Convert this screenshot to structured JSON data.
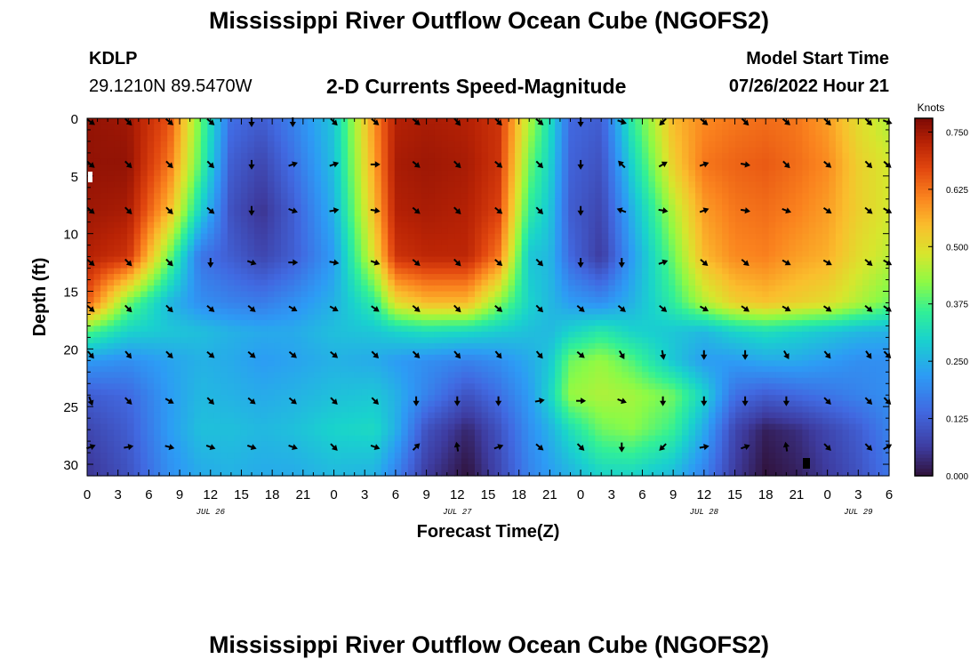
{
  "page": {
    "title": "Mississippi River Outflow Ocean Cube (NGOFS2)",
    "station_id": "KDLP",
    "coordinates": "29.1210N  89.5470W",
    "subtitle": "2-D Currents Speed-Magnitude",
    "model_start_label": "Model Start Time",
    "model_start_value": "07/26/2022 Hour 21",
    "bottom_title": "Mississippi River Outflow Ocean Cube (NGOFS2)"
  },
  "chart_data": {
    "type": "heatmap",
    "title": "2-D Currents Speed-Magnitude",
    "xlabel": "Forecast Time(Z)",
    "ylabel": "Depth (ft)",
    "colorbar_label": "Knots",
    "colorbar_ticks": [
      "0.750",
      "0.625",
      "0.500",
      "0.375",
      "0.250",
      "0.125",
      "0.000"
    ],
    "colorbar_range": [
      0.0,
      0.78
    ],
    "x_range_hours": [
      0,
      78
    ],
    "y_range_ft": [
      0,
      31
    ],
    "x_tick_labels": [
      "0",
      "3",
      "6",
      "9",
      "12",
      "15",
      "18",
      "21",
      "0",
      "3",
      "6",
      "9",
      "12",
      "15",
      "18",
      "21",
      "0",
      "3",
      "6",
      "9",
      "12",
      "15",
      "18",
      "21",
      "0",
      "3",
      "6"
    ],
    "date_labels": [
      {
        "text": "JUL 26",
        "hour": 12
      },
      {
        "text": "JUL 27",
        "hour": 36
      },
      {
        "text": "JUL 28",
        "hour": 60
      },
      {
        "text": "JUL 29",
        "hour": 75
      }
    ],
    "y_ticks": [
      0,
      5,
      10,
      15,
      20,
      25,
      30
    ],
    "speed_grid": {
      "hours": [
        0,
        4,
        8,
        11,
        14,
        17,
        20,
        24,
        28,
        30,
        33,
        37,
        40,
        43,
        45,
        47,
        50,
        53,
        57,
        60,
        63,
        66,
        69,
        72,
        75,
        78
      ],
      "depths": [
        0,
        4,
        8,
        12,
        16,
        18.5,
        21,
        24,
        27,
        31
      ],
      "values": [
        [
          0.76,
          0.75,
          0.66,
          0.4,
          0.15,
          0.12,
          0.18,
          0.28,
          0.6,
          0.73,
          0.74,
          0.73,
          0.7,
          0.45,
          0.32,
          0.14,
          0.12,
          0.35,
          0.55,
          0.6,
          0.62,
          0.63,
          0.62,
          0.58,
          0.5,
          0.45
        ],
        [
          0.76,
          0.76,
          0.62,
          0.38,
          0.12,
          0.08,
          0.15,
          0.27,
          0.58,
          0.74,
          0.75,
          0.74,
          0.7,
          0.4,
          0.3,
          0.13,
          0.1,
          0.3,
          0.52,
          0.62,
          0.64,
          0.65,
          0.63,
          0.6,
          0.52,
          0.48
        ],
        [
          0.75,
          0.74,
          0.55,
          0.3,
          0.1,
          0.05,
          0.12,
          0.25,
          0.55,
          0.73,
          0.74,
          0.73,
          0.68,
          0.35,
          0.28,
          0.12,
          0.08,
          0.25,
          0.45,
          0.58,
          0.62,
          0.63,
          0.61,
          0.58,
          0.52,
          0.48
        ],
        [
          0.73,
          0.7,
          0.4,
          0.16,
          0.12,
          0.08,
          0.12,
          0.22,
          0.5,
          0.7,
          0.72,
          0.72,
          0.62,
          0.28,
          0.26,
          0.14,
          0.06,
          0.22,
          0.4,
          0.55,
          0.6,
          0.61,
          0.58,
          0.56,
          0.5,
          0.46
        ],
        [
          0.65,
          0.4,
          0.26,
          0.2,
          0.18,
          0.17,
          0.2,
          0.25,
          0.35,
          0.5,
          0.55,
          0.55,
          0.42,
          0.3,
          0.26,
          0.22,
          0.2,
          0.25,
          0.35,
          0.45,
          0.52,
          0.54,
          0.52,
          0.5,
          0.45,
          0.4
        ],
        [
          0.38,
          0.3,
          0.28,
          0.27,
          0.25,
          0.24,
          0.24,
          0.27,
          0.28,
          0.3,
          0.32,
          0.31,
          0.29,
          0.27,
          0.26,
          0.3,
          0.34,
          0.3,
          0.28,
          0.26,
          0.3,
          0.32,
          0.3,
          0.28,
          0.26,
          0.25
        ],
        [
          0.22,
          0.2,
          0.23,
          0.25,
          0.24,
          0.22,
          0.23,
          0.25,
          0.24,
          0.22,
          0.2,
          0.18,
          0.2,
          0.24,
          0.28,
          0.4,
          0.43,
          0.38,
          0.28,
          0.22,
          0.22,
          0.24,
          0.24,
          0.22,
          0.2,
          0.2
        ],
        [
          0.12,
          0.14,
          0.22,
          0.26,
          0.25,
          0.24,
          0.25,
          0.27,
          0.28,
          0.25,
          0.18,
          0.1,
          0.15,
          0.22,
          0.3,
          0.43,
          0.45,
          0.44,
          0.4,
          0.3,
          0.15,
          0.12,
          0.14,
          0.16,
          0.18,
          0.2
        ],
        [
          0.08,
          0.12,
          0.22,
          0.27,
          0.27,
          0.26,
          0.27,
          0.3,
          0.31,
          0.25,
          0.1,
          0.03,
          0.1,
          0.2,
          0.25,
          0.32,
          0.4,
          0.42,
          0.36,
          0.24,
          0.08,
          0.02,
          0.04,
          0.08,
          0.12,
          0.18
        ],
        [
          0.05,
          0.1,
          0.2,
          0.24,
          0.25,
          0.24,
          0.24,
          0.26,
          0.25,
          0.18,
          0.06,
          0.0,
          0.08,
          0.18,
          0.22,
          0.25,
          0.3,
          0.3,
          0.26,
          0.18,
          0.06,
          0.0,
          0.02,
          0.06,
          0.1,
          0.16
        ]
      ]
    },
    "vector_depths": [
      0,
      4,
      8,
      12.5,
      16.5,
      20.5,
      24.5,
      28.5
    ],
    "vector_hours": [
      0,
      4,
      8,
      12,
      16,
      20,
      24,
      28,
      32,
      36,
      40,
      44,
      48,
      52,
      56,
      60,
      64,
      68,
      72,
      76,
      78
    ],
    "vector_angles_deg": [
      [
        35,
        45,
        40,
        40,
        90,
        90,
        45,
        40,
        40,
        50,
        45,
        40,
        90,
        20,
        135,
        40,
        45,
        40,
        45,
        45,
        20
      ],
      [
        40,
        45,
        45,
        45,
        90,
        -20,
        -20,
        0,
        40,
        45,
        40,
        45,
        90,
        -135,
        -30,
        -20,
        10,
        45,
        40,
        45,
        40
      ],
      [
        40,
        45,
        45,
        40,
        90,
        20,
        -10,
        10,
        40,
        45,
        40,
        45,
        90,
        -160,
        10,
        -20,
        10,
        20,
        35,
        40,
        30
      ],
      [
        40,
        45,
        45,
        90,
        20,
        0,
        10,
        20,
        40,
        45,
        40,
        45,
        90,
        90,
        -20,
        40,
        40,
        30,
        30,
        40,
        30
      ],
      [
        40,
        45,
        45,
        40,
        40,
        30,
        30,
        35,
        40,
        45,
        40,
        45,
        40,
        40,
        40,
        30,
        35,
        30,
        35,
        40,
        35
      ],
      [
        50,
        50,
        45,
        40,
        40,
        40,
        40,
        45,
        45,
        50,
        50,
        50,
        40,
        60,
        80,
        90,
        90,
        60,
        50,
        55,
        45
      ],
      [
        70,
        45,
        30,
        45,
        40,
        40,
        45,
        45,
        90,
        90,
        90,
        -10,
        0,
        20,
        90,
        90,
        90,
        90,
        45,
        45,
        45
      ],
      [
        -20,
        -10,
        15,
        20,
        20,
        20,
        45,
        20,
        -45,
        -100,
        -20,
        40,
        45,
        90,
        135,
        -10,
        -20,
        -100,
        45,
        45,
        -30
      ]
    ]
  }
}
